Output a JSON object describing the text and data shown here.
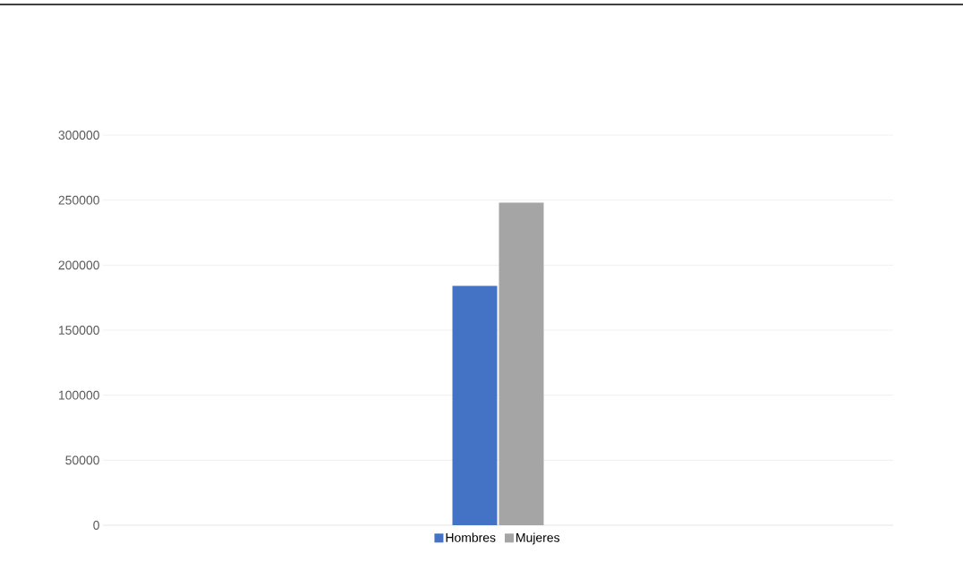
{
  "chart_data": {
    "type": "bar",
    "categories": [
      null
    ],
    "series": [
      {
        "name": "Hombres",
        "color": "#4472c4",
        "values": [
          184000
        ]
      },
      {
        "name": "Mujeres",
        "color": "#a5a5a5",
        "values": [
          248000
        ]
      }
    ],
    "ylim": [
      0,
      300000
    ],
    "yticks": [
      0,
      50000,
      100000,
      150000,
      200000,
      250000,
      300000
    ],
    "grid": "y",
    "legend": "bottom"
  }
}
